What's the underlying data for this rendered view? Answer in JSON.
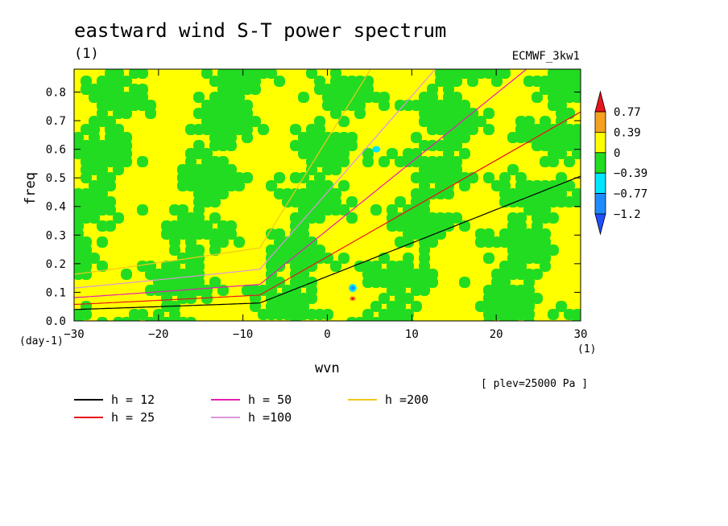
{
  "title": "eastward wind S-T power spectrum",
  "subtitle": "(1)",
  "dataset": "ECMWF_3kw1",
  "plev_note": "[ plev=25000 Pa ]",
  "chart_data": {
    "type": "heatmap",
    "title": "eastward wind S-T power spectrum",
    "xlabel": "wvn",
    "ylabel": "freq",
    "x_unit": "(1)",
    "y_unit": "(day-1)",
    "xlim": [
      -30,
      30
    ],
    "ylim": [
      0,
      0.88
    ],
    "x_ticks": [
      "−30",
      "−20",
      "−10",
      "0",
      "10",
      "20",
      "30"
    ],
    "x_tick_values": [
      -30,
      -20,
      -10,
      0,
      10,
      20,
      30
    ],
    "y_ticks": [
      "0.0",
      "0.1",
      "0.2",
      "0.3",
      "0.4",
      "0.5",
      "0.6",
      "0.7",
      "0.8"
    ],
    "y_tick_values": [
      0,
      0.1,
      0.2,
      0.3,
      0.4,
      0.5,
      0.6,
      0.7,
      0.8
    ],
    "colorbar": {
      "labels": [
        "0.77",
        "0.39",
        "0",
        "−0.39",
        "−0.77",
        "−1.2"
      ],
      "colors": [
        "#e8141c",
        "#f5a01e",
        "#ffff00",
        "#22dc22",
        "#00e6ff",
        "#1e8cff",
        "#1e50ff"
      ]
    },
    "field_note": "mottled field alternating between 0 to 0.39 (yellow) and -0.39 to 0 (green); isolated cyan/blue minima near wvn 3, freq 0.11 and near wvn 6, freq 0.6; red maximum near wvn 3, freq 0.08",
    "series": [
      {
        "name": "h = 12",
        "color": "#000000",
        "equivalent_depth": 12
      },
      {
        "name": "h = 25",
        "color": "#e8141c",
        "equivalent_depth": 25
      },
      {
        "name": "h = 50",
        "color": "#e61eb4",
        "equivalent_depth": 50
      },
      {
        "name": "h =100",
        "color": "#dc96dc",
        "equivalent_depth": 100
      },
      {
        "name": "h =200",
        "color": "#f0c81e",
        "equivalent_depth": 200
      }
    ]
  }
}
